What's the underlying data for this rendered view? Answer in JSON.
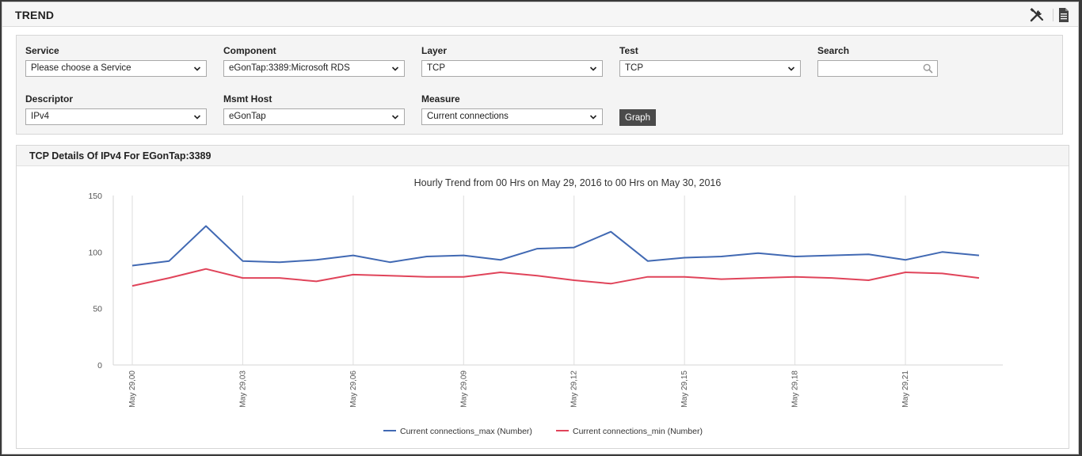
{
  "window": {
    "title": "TREND"
  },
  "filters": {
    "service": {
      "label": "Service",
      "value": "Please choose a Service"
    },
    "component": {
      "label": "Component",
      "value": "eGonTap:3389:Microsoft RDS"
    },
    "layer": {
      "label": "Layer",
      "value": "TCP"
    },
    "test": {
      "label": "Test",
      "value": "TCP"
    },
    "search": {
      "label": "Search",
      "value": ""
    },
    "descriptor": {
      "label": "Descriptor",
      "value": "IPv4"
    },
    "msmt_host": {
      "label": "Msmt Host",
      "value": "eGonTap"
    },
    "measure": {
      "label": "Measure",
      "value": "Current connections"
    },
    "graph_label": "Graph"
  },
  "panel": {
    "title": "TCP Details Of IPv4 For EGonTap:3389"
  },
  "icons": {
    "tools": "wrench-screwdriver-icon",
    "report": "document-icon",
    "search": "search-icon",
    "dropdown": "chevron-down-icon"
  },
  "colors": {
    "max_series": "#4169b3",
    "min_series": "#e0445a"
  },
  "chart_data": {
    "type": "line",
    "title": "Hourly Trend from 00 Hrs on May 29, 2016 to 00 Hrs on May 30, 2016",
    "xlabel": "",
    "ylabel": "",
    "ylim": [
      0,
      150
    ],
    "yticks": [
      0,
      50,
      100,
      150
    ],
    "x": [
      0,
      1,
      2,
      3,
      4,
      5,
      6,
      7,
      8,
      9,
      10,
      11,
      12,
      13,
      14,
      15,
      16,
      17,
      18,
      19,
      20,
      21,
      22,
      23
    ],
    "xtick_labels": [
      "May 29,00",
      "May 29,03",
      "May 29,06",
      "May 29,09",
      "May 29,12",
      "May 29,15",
      "May 29,18",
      "May 29,21"
    ],
    "xtick_positions": [
      0,
      3,
      6,
      9,
      12,
      15,
      18,
      21
    ],
    "grid": "vertical",
    "legend_position": "bottom",
    "series": [
      {
        "name": "Current connections_max (Number)",
        "color": "#4169b3",
        "values": [
          88,
          92,
          123,
          92,
          91,
          93,
          97,
          91,
          96,
          97,
          93,
          103,
          104,
          118,
          92,
          95,
          96,
          99,
          96,
          97,
          98,
          93,
          100,
          97
        ]
      },
      {
        "name": "Current connections_min (Number)",
        "color": "#e0445a",
        "values": [
          70,
          77,
          85,
          77,
          77,
          74,
          80,
          79,
          78,
          78,
          82,
          79,
          75,
          72,
          78,
          78,
          76,
          77,
          78,
          77,
          75,
          82,
          81,
          77
        ]
      }
    ]
  }
}
